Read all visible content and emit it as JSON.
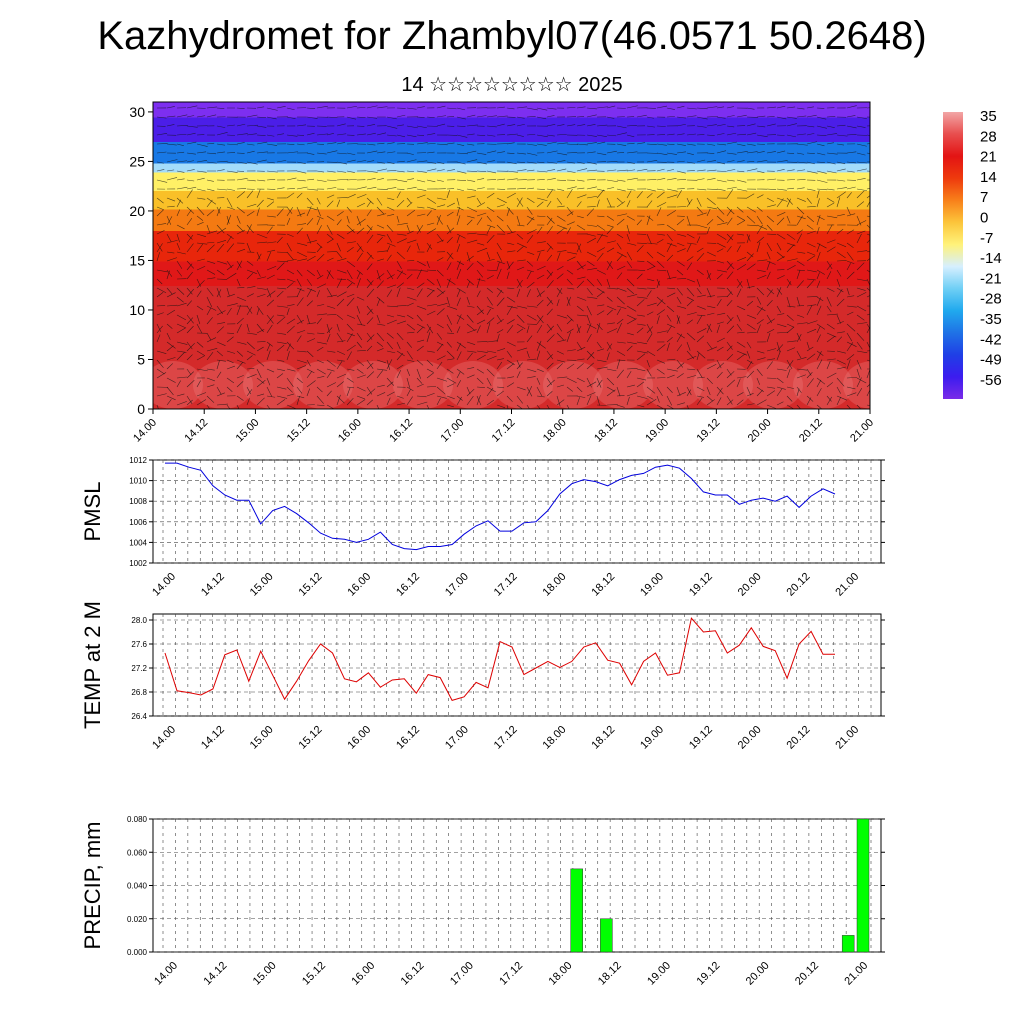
{
  "title": "Kazhydromet for Zhambyl07(46.0571 50.2648)",
  "subtitle": "14 ☆☆☆☆☆☆☆☆ 2025",
  "time_labels": [
    "14.00",
    "14.12",
    "15.00",
    "15.12",
    "16.00",
    "16.12",
    "17.00",
    "17.12",
    "18.00",
    "18.12",
    "19.00",
    "19.12",
    "20.00",
    "20.12",
    "21.00"
  ],
  "chart_data": [
    {
      "type": "heatmap",
      "yticks": [
        0,
        5,
        10,
        15,
        20,
        25,
        30
      ],
      "ylim": [
        0,
        31
      ],
      "colorbar": {
        "labels": [
          "35",
          "28",
          "21",
          "14",
          "7",
          "0",
          "-7",
          "-14",
          "-21",
          "-28",
          "-35",
          "-42",
          "-49",
          "-56"
        ],
        "colors": [
          "#f2a6a6",
          "#e84e4e",
          "#e31414",
          "#ee3a0d",
          "#f8801a",
          "#fcc53b",
          "#fff27a",
          "#d6efff",
          "#6fcff5",
          "#20a9ee",
          "#1f72e6",
          "#1f3fe6",
          "#3c1cef",
          "#7a2be8"
        ]
      },
      "vertical_bands": [
        {
          "from": 0,
          "to": 5,
          "color": "#7d2ff0"
        },
        {
          "from": 5,
          "to": 13,
          "color": "#4b1ee8"
        },
        {
          "from": 13,
          "to": 20,
          "color": "#1878e5"
        },
        {
          "from": 20,
          "to": 23,
          "color": "#a4dcfa"
        },
        {
          "from": 23,
          "to": 29,
          "color": "#fff066"
        },
        {
          "from": 29,
          "to": 35,
          "color": "#f9c028"
        },
        {
          "from": 35,
          "to": 42,
          "color": "#f47a12"
        },
        {
          "from": 42,
          "to": 52,
          "color": "#e8260b"
        },
        {
          "from": 52,
          "to": 60,
          "color": "#e01818"
        },
        {
          "from": 60,
          "to": 100,
          "color": "#d42a2a"
        }
      ]
    },
    {
      "type": "line",
      "ylabel": "PMSL",
      "ylim": [
        1002,
        1012
      ],
      "yticks": [
        1002,
        1004,
        1006,
        1008,
        1010,
        1012
      ],
      "color": "#0000dd",
      "values": [
        1011.7,
        1011.7,
        1011.3,
        1011.0,
        1009.5,
        1008.6,
        1008.1,
        1008.1,
        1005.8,
        1007.1,
        1007.5,
        1006.8,
        1005.9,
        1004.9,
        1004.4,
        1004.3,
        1004.0,
        1004.3,
        1005.0,
        1003.8,
        1003.4,
        1003.3,
        1003.6,
        1003.6,
        1003.8,
        1004.8,
        1005.6,
        1006.1,
        1005.1,
        1005.1,
        1005.9,
        1006.0,
        1007.1,
        1008.7,
        1009.7,
        1010.1,
        1009.9,
        1009.5,
        1010.1,
        1010.5,
        1010.7,
        1011.3,
        1011.5,
        1011.2,
        1010.2,
        1008.9,
        1008.6,
        1008.6,
        1007.7,
        1008.1,
        1008.3,
        1008.0,
        1008.5,
        1007.4,
        1008.5,
        1009.2,
        1008.7
      ]
    },
    {
      "type": "line",
      "ylabel": "TEMP at 2 M",
      "ylim": [
        26.4,
        28.1
      ],
      "yticks": [
        26.4,
        26.8,
        27.2,
        27.6,
        28.0
      ],
      "ytick_labels": [
        "26.4",
        "26.8",
        "27.2",
        "27.6",
        "28.0"
      ],
      "color": "#dd0000",
      "values": [
        27.45,
        26.82,
        26.79,
        26.75,
        26.85,
        27.42,
        27.5,
        26.98,
        27.48,
        27.08,
        26.68,
        26.98,
        27.32,
        27.6,
        27.45,
        27.02,
        26.97,
        27.12,
        26.88,
        27.0,
        27.02,
        26.78,
        27.09,
        27.04,
        26.66,
        26.72,
        26.96,
        26.87,
        27.64,
        27.55,
        27.09,
        27.2,
        27.31,
        27.21,
        27.31,
        27.55,
        27.62,
        27.33,
        27.28,
        26.92,
        27.31,
        27.45,
        27.08,
        27.12,
        28.03,
        27.8,
        27.82,
        27.45,
        27.58,
        27.87,
        27.56,
        27.49,
        27.03,
        27.6,
        27.81,
        27.43,
        27.43
      ]
    },
    {
      "type": "bar",
      "ylabel": "PRECIP, mm",
      "ylim": [
        0,
        0.08
      ],
      "yticks": [
        0,
        0.02,
        0.04,
        0.06,
        0.08
      ],
      "ytick_labels": [
        "0.000",
        "0.020",
        "0.040",
        "0.060",
        "0.080"
      ],
      "color": "#00ff00",
      "bars": [
        {
          "x": 8.2,
          "value": 0.05
        },
        {
          "x": 8.8,
          "value": 0.02
        },
        {
          "x": 13.7,
          "value": 0.01
        },
        {
          "x": 14.0,
          "value": 0.08
        }
      ]
    }
  ]
}
